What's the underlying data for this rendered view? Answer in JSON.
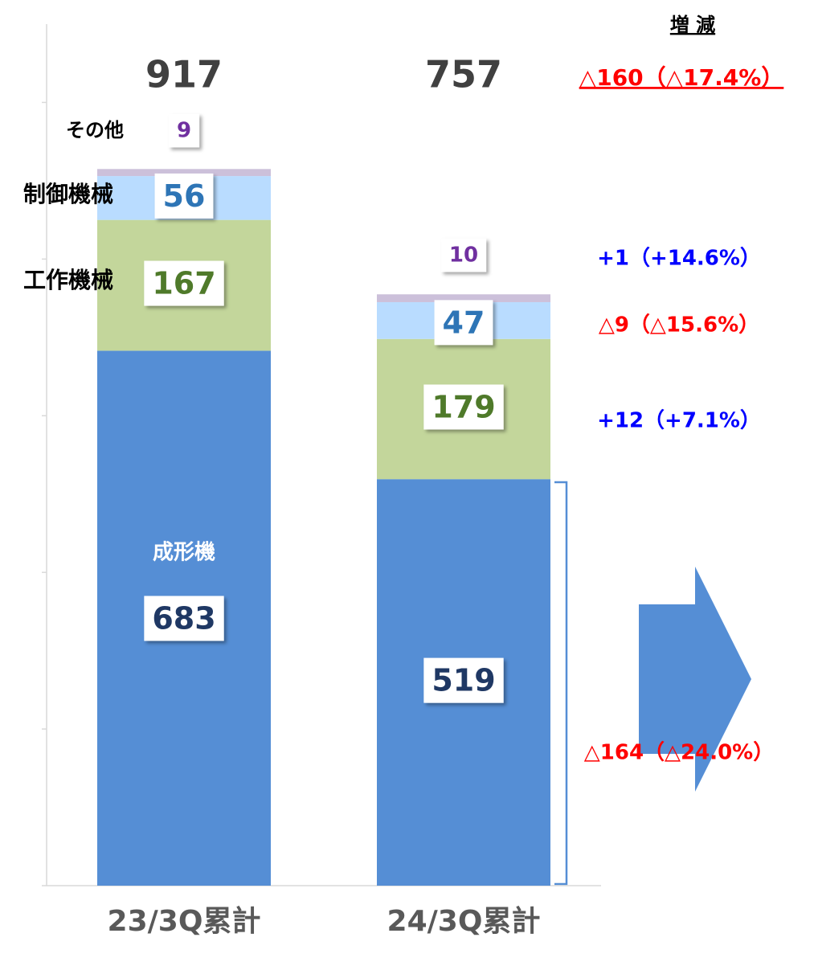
{
  "chart_data": {
    "type": "stacked_bar",
    "header": "増 減",
    "categories": [
      "23/3Q累計",
      "24/3Q累計"
    ],
    "totals": [
      917,
      757
    ],
    "total_change": "△160（△17.4%）",
    "total_change_color": "#ff0000",
    "series": [
      {
        "name": "成形機",
        "color": "#558ed5",
        "label_color": "#1f3864",
        "values": [
          683,
          519
        ],
        "change": "△164（△24.0%）",
        "change_color": "#ff0000"
      },
      {
        "name": "工作機械",
        "color": "#c3d69b",
        "label_color": "#4f7a2a",
        "values": [
          167,
          179
        ],
        "change": "+12（+7.1%）",
        "change_color": "#0000ff"
      },
      {
        "name": "制御機械",
        "color": "#b9dcff",
        "label_color": "#2e75b6",
        "values": [
          56,
          47
        ],
        "change": "△9（△15.6%）",
        "change_color": "#ff0000"
      },
      {
        "name": "その他",
        "color": "#ccc0da",
        "label_color": "#7030a0",
        "values": [
          9,
          10
        ],
        "change": "+1（+14.6%）",
        "change_color": "#0000ff"
      }
    ],
    "ylim": [
      0,
      1100
    ],
    "yticks": [
      0,
      200,
      400,
      600,
      800,
      1000
    ]
  }
}
